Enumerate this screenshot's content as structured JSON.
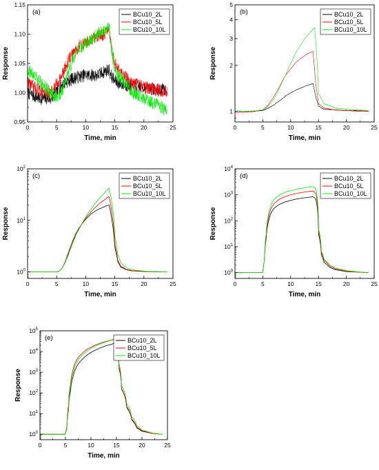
{
  "chart_data": [
    {
      "panel": "(a)",
      "type": "line",
      "yscale": "linear",
      "xlabel": "Time, min",
      "ylabel": "Response",
      "xlim": [
        0,
        25
      ],
      "ylim": [
        0.95,
        1.15
      ],
      "xticks": [
        0,
        5,
        10,
        15,
        20,
        25
      ],
      "xtick_labels": [
        "0",
        "5",
        "10",
        "15",
        "20",
        "25"
      ],
      "yticks": [
        0.95,
        1.0,
        1.05,
        1.1,
        1.15
      ],
      "ytick_labels": [
        "0.95",
        "1.00",
        "1.05",
        "1.10",
        "1.15"
      ],
      "legend": "top-right",
      "series": [
        {
          "name": "BCu10_2L",
          "color": "#000000",
          "noise": 0.011,
          "x": [
            0,
            2,
            4,
            5,
            6,
            8,
            10,
            12,
            13,
            14,
            14.3,
            15,
            16,
            18,
            20,
            22,
            24
          ],
          "y": [
            1.0,
            0.99,
            0.99,
            1.0,
            1.015,
            1.025,
            1.03,
            1.03,
            1.035,
            1.04,
            1.03,
            1.02,
            1.015,
            1.01,
            1.01,
            1.005,
            1.005
          ]
        },
        {
          "name": "BCu10_5L",
          "color": "#ff0000",
          "noise": 0.011,
          "x": [
            0,
            1,
            2,
            3,
            4,
            5,
            6,
            7,
            8,
            9,
            10,
            11,
            12,
            13,
            14,
            14.5,
            15,
            16,
            17,
            18,
            20,
            22,
            24
          ],
          "y": [
            1.02,
            1.01,
            1.005,
            1.0,
            1.0,
            1.015,
            1.03,
            1.055,
            1.07,
            1.08,
            1.085,
            1.09,
            1.095,
            1.1,
            1.105,
            1.07,
            1.05,
            1.035,
            1.025,
            1.015,
            1.01,
            1.005,
            1.0
          ]
        },
        {
          "name": "BCu10_10L",
          "color": "#00ee00",
          "noise": 0.011,
          "x": [
            0,
            1,
            2,
            3,
            4,
            5,
            6,
            7,
            8,
            9,
            10,
            11,
            12,
            13,
            14,
            14.5,
            15,
            16,
            17,
            18,
            19,
            20,
            21,
            22,
            23,
            24
          ],
          "y": [
            1.04,
            1.03,
            1.02,
            1.01,
            1.0,
            0.99,
            1.005,
            1.035,
            1.06,
            1.075,
            1.085,
            1.09,
            1.1,
            1.105,
            1.115,
            1.07,
            1.04,
            1.025,
            1.015,
            1.0,
            0.995,
            0.99,
            0.985,
            0.98,
            0.975,
            0.97
          ]
        }
      ]
    },
    {
      "panel": "(b)",
      "type": "line",
      "yscale": "log",
      "xlabel": "Time, min",
      "ylabel": "Response",
      "xlim": [
        0,
        25
      ],
      "ylim": [
        0.85,
        5
      ],
      "xticks": [
        0,
        5,
        10,
        15,
        20,
        25
      ],
      "xtick_labels": [
        "0",
        "5",
        "10",
        "15",
        "20",
        "25"
      ],
      "yticks": [
        1,
        2,
        3,
        4,
        5
      ],
      "ytick_labels": [
        "1",
        "2",
        "3",
        "4",
        "5"
      ],
      "legend": "top-right",
      "series": [
        {
          "name": "BCu10_2L",
          "color": "#000000",
          "noise": 0.004,
          "x": [
            0,
            3,
            5,
            6,
            7,
            8,
            9,
            10,
            11,
            12,
            13,
            14,
            14.5,
            15,
            16,
            18,
            20,
            22,
            24
          ],
          "y": [
            1.0,
            1.0,
            1.01,
            1.05,
            1.1,
            1.17,
            1.25,
            1.32,
            1.38,
            1.43,
            1.48,
            1.52,
            1.25,
            1.08,
            1.03,
            1.02,
            1.01,
            1.01,
            1.0
          ]
        },
        {
          "name": "BCu10_5L",
          "color": "#ff0000",
          "noise": 0.004,
          "x": [
            0,
            3,
            5,
            6,
            7,
            8,
            9,
            10,
            11,
            12,
            13,
            14,
            14.5,
            15,
            16,
            18,
            20,
            22,
            24
          ],
          "y": [
            0.98,
            0.99,
            1.02,
            1.1,
            1.25,
            1.45,
            1.7,
            1.9,
            2.1,
            2.25,
            2.38,
            2.48,
            1.5,
            1.12,
            1.05,
            1.02,
            1.01,
            1.0,
            1.0
          ]
        },
        {
          "name": "BCu10_10L",
          "color": "#00ee00",
          "noise": 0.004,
          "x": [
            0,
            3,
            5,
            6,
            7,
            8,
            9,
            10,
            11,
            12,
            13,
            14,
            14.3,
            15,
            16,
            18,
            20,
            22,
            24
          ],
          "y": [
            1.0,
            1.0,
            1.02,
            1.08,
            1.2,
            1.42,
            1.7,
            2.05,
            2.45,
            2.8,
            3.15,
            3.45,
            3.55,
            1.3,
            1.12,
            1.05,
            1.03,
            1.02,
            1.01
          ]
        }
      ]
    },
    {
      "panel": "(c)",
      "type": "line",
      "yscale": "log",
      "xlabel": "Time, min",
      "ylabel": "Response",
      "xlim": [
        0,
        25
      ],
      "ylim": [
        0.75,
        100
      ],
      "xticks": [
        0,
        5,
        10,
        15,
        20,
        25
      ],
      "xtick_labels": [
        "0",
        "5",
        "10",
        "15",
        "20",
        "25"
      ],
      "yticks": [
        1,
        10,
        100
      ],
      "ytick_labels": [
        [
          "10",
          "0"
        ],
        [
          "10",
          "1"
        ],
        [
          "10",
          "2"
        ]
      ],
      "legend": "top-right",
      "series": [
        {
          "name": "BCu10_2L",
          "color": "#000000",
          "noise": 0,
          "x": [
            0,
            4,
            5,
            5.5,
            6,
            6.5,
            7,
            7.5,
            8,
            9,
            10,
            11,
            12,
            13,
            14,
            14.5,
            15,
            15.5,
            16,
            17,
            18,
            20,
            22,
            24
          ],
          "y": [
            1,
            1,
            1,
            1.05,
            1.2,
            1.6,
            2.3,
            3.3,
            4.6,
            7.5,
            10.5,
            13.5,
            16,
            18,
            20,
            10,
            3,
            1.6,
            1.25,
            1.1,
            1.05,
            1.02,
            1.01,
            1.0
          ]
        },
        {
          "name": "BCu10_5L",
          "color": "#ff0000",
          "noise": 0,
          "x": [
            0,
            4,
            5,
            5.5,
            6,
            6.5,
            7,
            7.5,
            8,
            9,
            10,
            11,
            12,
            13,
            14,
            14.5,
            15,
            15.5,
            16,
            17,
            18,
            20,
            22,
            24
          ],
          "y": [
            1,
            1,
            1,
            1.05,
            1.2,
            1.55,
            2.2,
            3.2,
            4.4,
            7.3,
            11,
            15,
            19.5,
            24,
            29,
            14,
            3.5,
            1.7,
            1.3,
            1.12,
            1.06,
            1.03,
            1.01,
            1.0
          ]
        },
        {
          "name": "BCu10_10L",
          "color": "#00ee00",
          "noise": 0,
          "x": [
            0,
            4,
            5,
            5.5,
            6,
            6.5,
            7,
            7.5,
            8,
            9,
            10,
            11,
            12,
            13,
            14,
            14.5,
            15,
            15.5,
            16,
            17,
            18,
            20,
            22,
            24
          ],
          "y": [
            1,
            1,
            1,
            1.05,
            1.2,
            1.55,
            2.1,
            3.0,
            4.2,
            7.2,
            11.5,
            17,
            24,
            32,
            42,
            22,
            5,
            2.2,
            1.5,
            1.2,
            1.1,
            1.04,
            1.02,
            1.0
          ]
        }
      ]
    },
    {
      "panel": "(d)",
      "type": "line",
      "yscale": "log",
      "xlabel": "Time, min",
      "ylabel": "Response",
      "xlim": [
        0,
        25
      ],
      "ylim": [
        0.6,
        10000
      ],
      "xticks": [
        0,
        5,
        10,
        15,
        20,
        25
      ],
      "xtick_labels": [
        "0",
        "5",
        "10",
        "15",
        "20",
        "25"
      ],
      "yticks": [
        1,
        10,
        100,
        1000,
        10000
      ],
      "ytick_labels": [
        [
          "10",
          "0"
        ],
        [
          "10",
          "1"
        ],
        [
          "10",
          "2"
        ],
        [
          "10",
          "3"
        ],
        [
          "10",
          "4"
        ]
      ],
      "legend": "top-right",
      "series": [
        {
          "name": "BCu10_2L",
          "color": "#000000",
          "noise": 0,
          "x": [
            0,
            4.5,
            5,
            5.3,
            5.6,
            6,
            6.5,
            7,
            8,
            9,
            10,
            11,
            12,
            13,
            14,
            14.5,
            15,
            15.5,
            16,
            17,
            18,
            20,
            22,
            24
          ],
          "y": [
            1,
            1,
            1,
            3,
            20,
            90,
            200,
            300,
            430,
            530,
            610,
            680,
            740,
            790,
            840,
            700,
            30,
            5,
            2.5,
            1.6,
            1.3,
            1.1,
            1.05,
            1.0
          ]
        },
        {
          "name": "BCu10_5L",
          "color": "#ff0000",
          "noise": 0,
          "x": [
            0,
            4.5,
            5,
            5.3,
            5.6,
            6,
            6.5,
            7,
            8,
            9,
            10,
            11,
            12,
            13,
            14,
            14.5,
            15,
            15.5,
            16,
            17,
            18,
            20,
            22,
            24
          ],
          "y": [
            1,
            1,
            1,
            3,
            25,
            120,
            300,
            450,
            680,
            850,
            1000,
            1120,
            1230,
            1320,
            1400,
            1150,
            40,
            6,
            3,
            1.8,
            1.4,
            1.15,
            1.05,
            1.0
          ]
        },
        {
          "name": "BCu10_10L",
          "color": "#00ee00",
          "noise": 0,
          "x": [
            0,
            4.5,
            5,
            5.3,
            5.6,
            6,
            6.5,
            7,
            8,
            9,
            10,
            11,
            12,
            13,
            14,
            14.5,
            15,
            15.5,
            16,
            17,
            18,
            20,
            22,
            24
          ],
          "y": [
            1,
            1,
            1,
            3,
            30,
            160,
            420,
            650,
            980,
            1250,
            1450,
            1620,
            1780,
            1920,
            2050,
            1700,
            50,
            7,
            3.3,
            2,
            1.5,
            1.2,
            1.08,
            1.0
          ]
        }
      ]
    },
    {
      "panel": "(e)",
      "type": "line",
      "yscale": "log",
      "xlabel": "Time, min",
      "ylabel": "Response",
      "xlim": [
        0,
        25
      ],
      "ylim": [
        0.55,
        100000
      ],
      "xticks": [
        0,
        5,
        10,
        15,
        20,
        25
      ],
      "xtick_labels": [
        "0",
        "5",
        "10",
        "15",
        "20",
        "25"
      ],
      "yticks": [
        1,
        10,
        100,
        1000,
        10000,
        100000
      ],
      "ytick_labels": [
        [
          "10",
          "0"
        ],
        [
          "10",
          "1"
        ],
        [
          "10",
          "2"
        ],
        [
          "10",
          "3"
        ],
        [
          "10",
          "4"
        ],
        [
          "10",
          "5"
        ]
      ],
      "legend": "top-right",
      "series": [
        {
          "name": "BCu10_2L",
          "color": "#000000",
          "noise": 0,
          "x": [
            0,
            4.5,
            5,
            5.3,
            5.6,
            6,
            6.5,
            7,
            8,
            9,
            10,
            11,
            12,
            13,
            14,
            14.5,
            15,
            15.5,
            16,
            17,
            18,
            19,
            20,
            22,
            24
          ],
          "y": [
            1,
            1,
            1,
            2,
            15,
            120,
            600,
            1500,
            3500,
            6000,
            9000,
            12000,
            15500,
            19000,
            22000,
            25000,
            15000,
            1500,
            150,
            20,
            5,
            2,
            1.4,
            1.1,
            1.0
          ]
        },
        {
          "name": "BCu10_5L",
          "color": "#ff0000",
          "noise": 0,
          "x": [
            0,
            4.5,
            5,
            5.3,
            5.6,
            6,
            6.5,
            7,
            8,
            9,
            10,
            11,
            12,
            13,
            14,
            14.5,
            15,
            15.5,
            16,
            17,
            18,
            19,
            20,
            22,
            24
          ],
          "y": [
            1,
            1,
            1,
            2.5,
            25,
            250,
            1300,
            3200,
            7000,
            11500,
            16000,
            21000,
            26000,
            31000,
            36000,
            40000,
            20000,
            1800,
            160,
            22,
            5.5,
            2.2,
            1.5,
            1.1,
            1.0
          ]
        },
        {
          "name": "BCu10_10L",
          "color": "#00ee00",
          "noise": 0,
          "x": [
            0,
            4.5,
            5,
            5.3,
            5.6,
            6,
            6.5,
            7,
            8,
            9,
            10,
            11,
            12,
            13,
            14,
            14.5,
            15,
            15.5,
            16,
            17,
            18,
            19,
            20,
            22,
            24
          ],
          "y": [
            1,
            1,
            1,
            2,
            18,
            180,
            900,
            2400,
            5500,
            9500,
            14000,
            19000,
            24000,
            29500,
            35000,
            38000,
            25000,
            2500,
            220,
            30,
            7,
            2.6,
            1.6,
            1.15,
            1.0
          ]
        }
      ]
    }
  ]
}
